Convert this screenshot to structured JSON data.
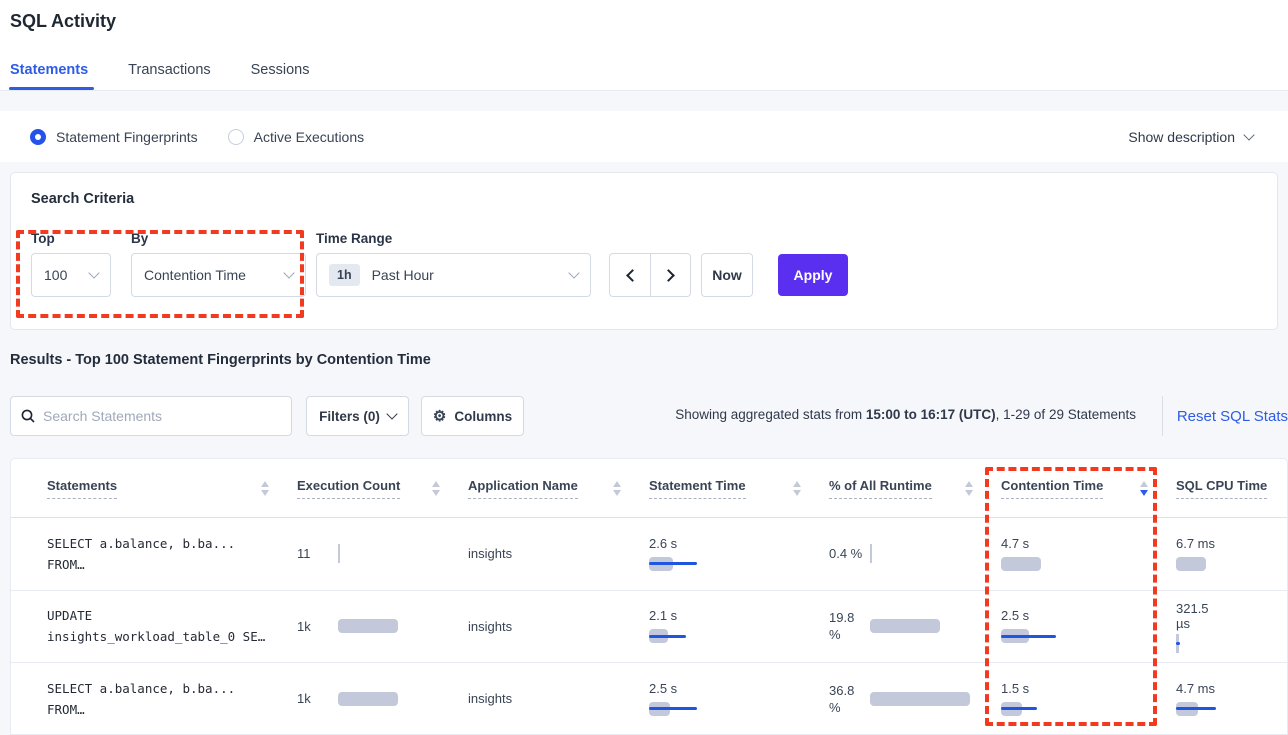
{
  "page": {
    "title": "SQL Activity"
  },
  "tabs": [
    {
      "label": "Statements",
      "active": true
    },
    {
      "label": "Transactions",
      "active": false
    },
    {
      "label": "Sessions",
      "active": false
    }
  ],
  "view_toggle": {
    "options": [
      {
        "label": "Statement Fingerprints",
        "selected": true
      },
      {
        "label": "Active Executions",
        "selected": false
      }
    ],
    "show_description": "Show description"
  },
  "search_criteria": {
    "heading": "Search Criteria",
    "top": {
      "label": "Top",
      "value": "100"
    },
    "by": {
      "label": "By",
      "value": "Contention Time"
    },
    "time_range": {
      "label": "Time Range",
      "badge": "1h",
      "value": "Past Hour"
    },
    "now_button": "Now",
    "apply_button": "Apply"
  },
  "results": {
    "heading": "Results - Top 100 Statement Fingerprints by Contention Time",
    "search_placeholder": "Search Statements",
    "filters_button": "Filters (0)",
    "columns_button": "Columns",
    "stats_prefix": "Showing aggregated stats from ",
    "stats_bold": "15:00 to 16:17 (UTC)",
    "stats_suffix": ", 1-29 of 29 Statements",
    "reset_link": "Reset SQL Stats"
  },
  "table": {
    "headers": [
      {
        "label": "Statements",
        "sort": "both"
      },
      {
        "label": "Execution Count",
        "sort": "both"
      },
      {
        "label": "Application Name",
        "sort": "both"
      },
      {
        "label": "Statement Time",
        "sort": "both"
      },
      {
        "label": "% of All Runtime",
        "sort": "both"
      },
      {
        "label": "Contention Time",
        "sort": "desc"
      },
      {
        "label": "SQL CPU Time",
        "sort": "none"
      }
    ],
    "rows": [
      {
        "statement_line1": "SELECT a.balance, b.ba...",
        "statement_line2": "FROM…",
        "execution_count": "11",
        "exec_bar": {
          "gray": 2,
          "blue": 0
        },
        "application": "insights",
        "statement_time": "2.6 s",
        "stmt_bar": {
          "gray": 24,
          "blue": 48
        },
        "runtime_pct": "0.4 %",
        "runtime_wrap": false,
        "runtime_bar": {
          "gray": 1.5,
          "blue": 0
        },
        "contention_time": "4.7 s",
        "cont_bar": {
          "gray": 40,
          "blue": 0
        },
        "cpu_time": "6.7 ms",
        "cpu_wrap": false,
        "cpu_bar": {
          "gray": 30,
          "blue": 0
        }
      },
      {
        "statement_line1": "UPDATE",
        "statement_line2": "insights_workload_table_0 SE…",
        "execution_count": "1k",
        "exec_bar": {
          "gray": 60,
          "blue": 0
        },
        "application": "insights",
        "statement_time": "2.1 s",
        "stmt_bar": {
          "gray": 19,
          "blue": 37
        },
        "runtime_pct": "19.8 %",
        "runtime_wrap": true,
        "runtime_bar": {
          "gray": 70,
          "blue": 0
        },
        "contention_time": "2.5 s",
        "cont_bar": {
          "gray": 28,
          "blue": 55
        },
        "cpu_time": "321.5 µs",
        "cpu_wrap": true,
        "cpu_bar": {
          "gray": 3,
          "blue": 4
        }
      },
      {
        "statement_line1": "SELECT a.balance, b.ba...",
        "statement_line2": "FROM…",
        "execution_count": "1k",
        "exec_bar": {
          "gray": 60,
          "blue": 0
        },
        "application": "insights",
        "statement_time": "2.5 s",
        "stmt_bar": {
          "gray": 21,
          "blue": 48
        },
        "runtime_pct": "36.8 %",
        "runtime_wrap": true,
        "runtime_bar": {
          "gray": 100,
          "blue": 0
        },
        "contention_time": "1.5 s",
        "cont_bar": {
          "gray": 21,
          "blue": 36
        },
        "cpu_time": "4.7 ms",
        "cpu_wrap": false,
        "cpu_bar": {
          "gray": 22,
          "blue": 40
        }
      }
    ]
  },
  "colors": {
    "accent_blue": "#2e5ce6",
    "apply_purple": "#5b2ff0",
    "annotation_red": "#f23a21",
    "bar_gray": "#c3c9db",
    "bar_blue": "#1f56e0",
    "background": "#f5f7fa"
  }
}
